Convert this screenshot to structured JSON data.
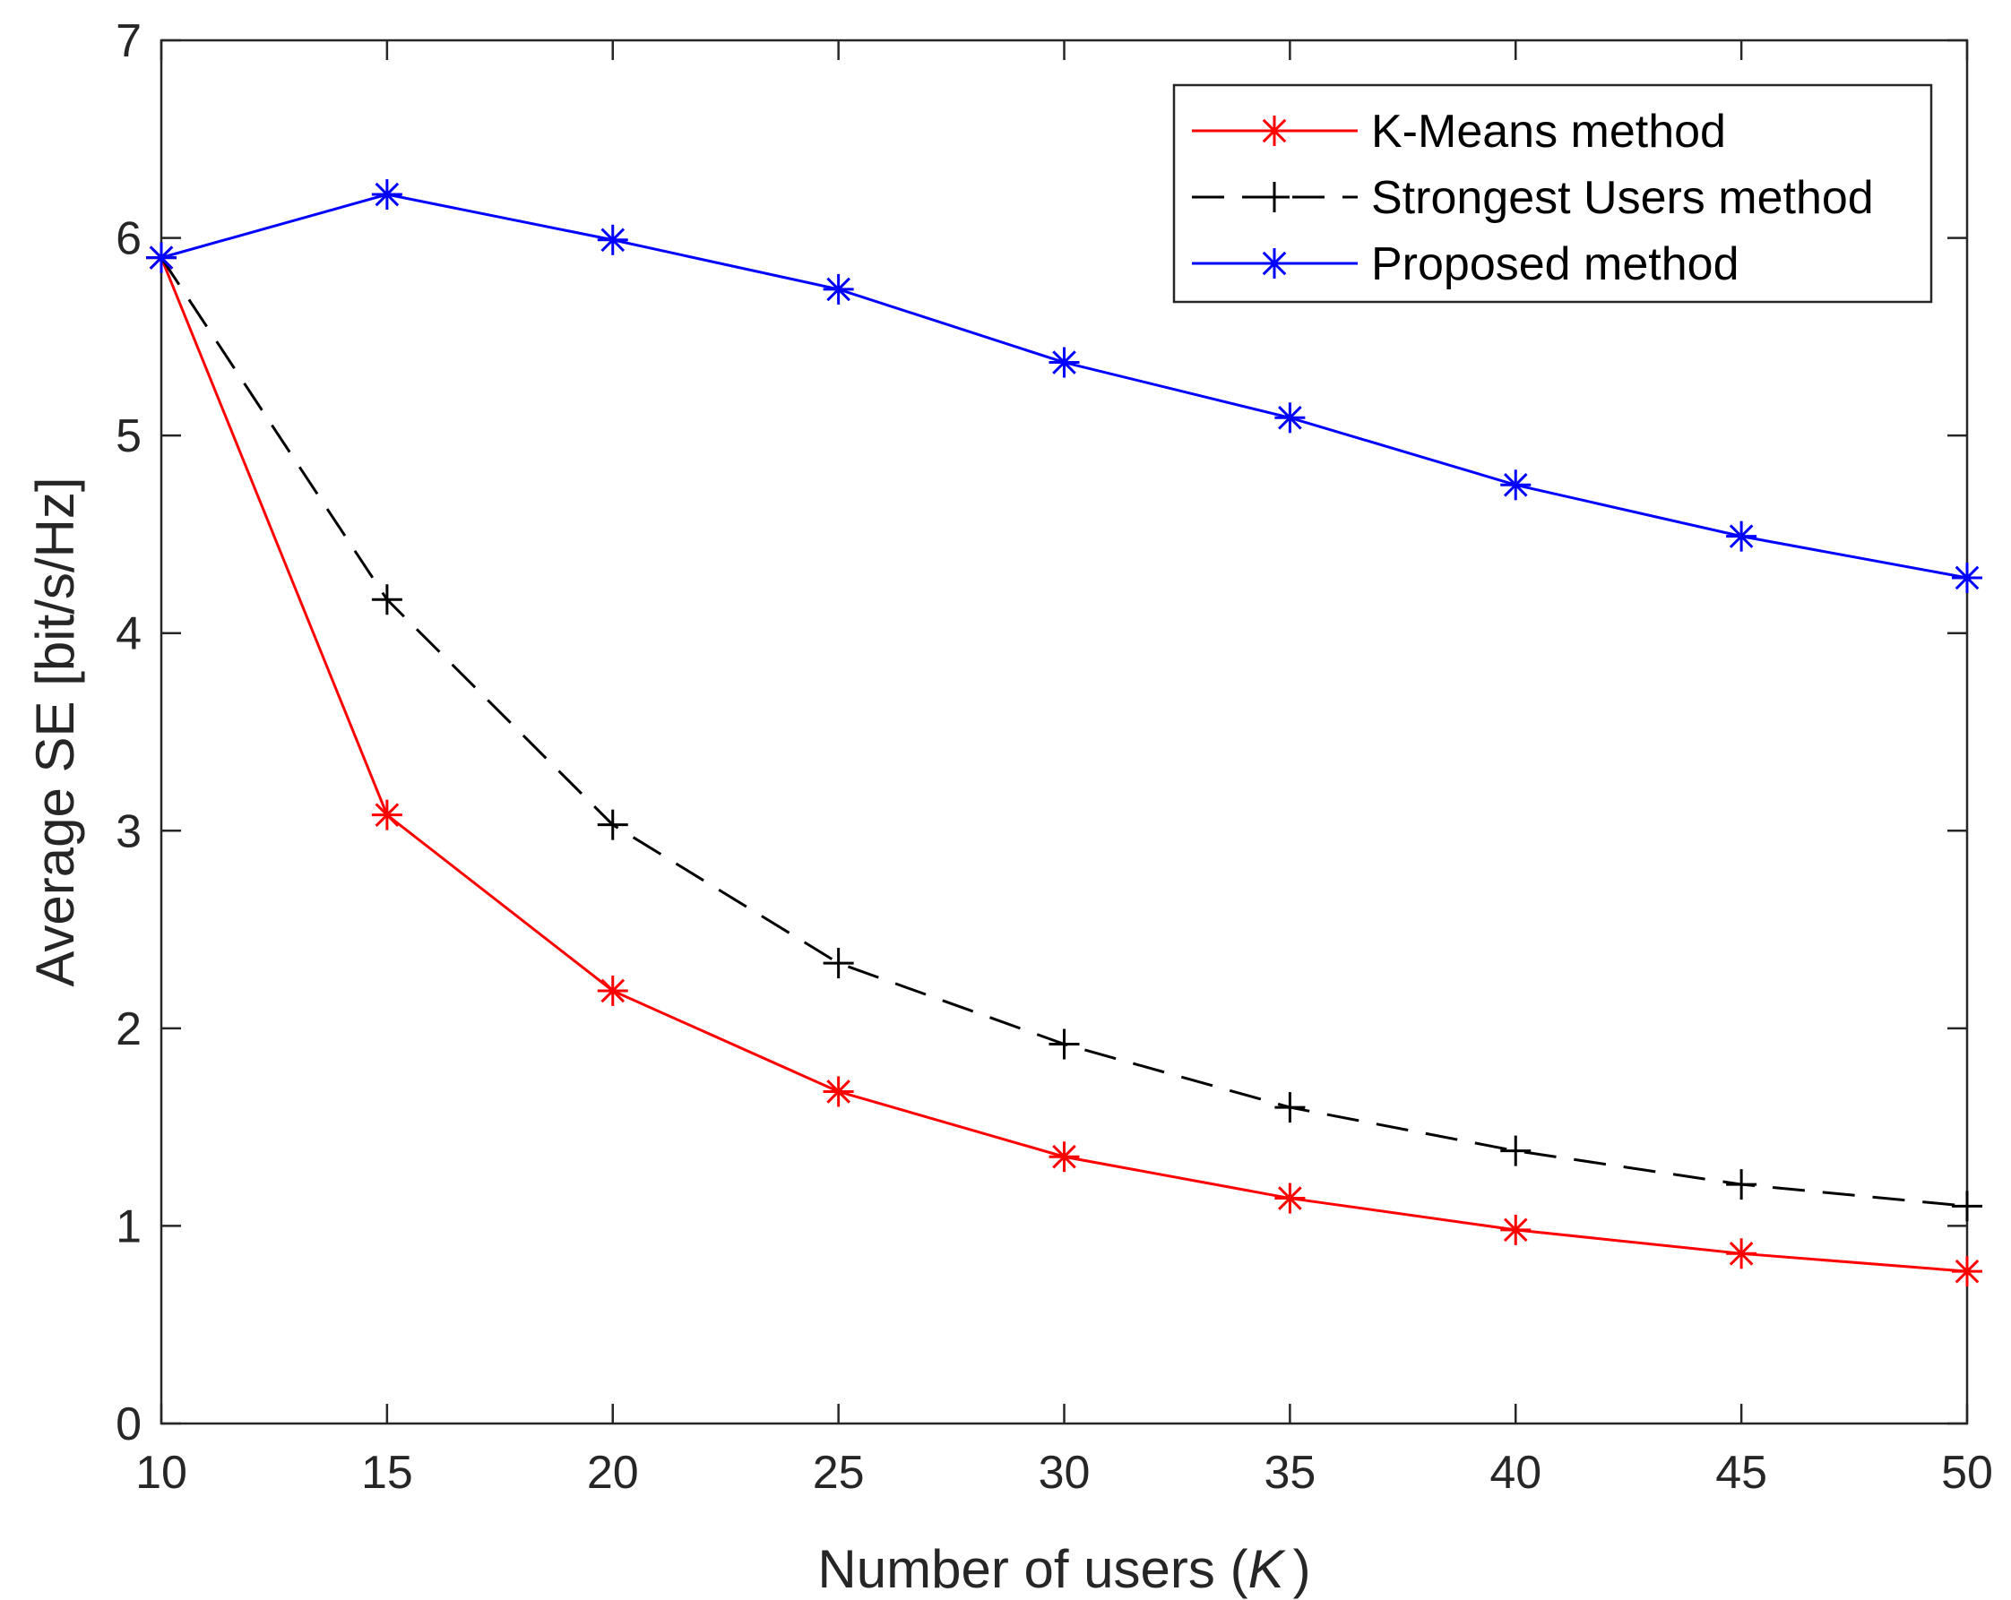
{
  "chart_data": {
    "type": "line",
    "title": "",
    "xlabel": "Number of users (",
    "xlabel_var": "K",
    "xlabel_close": ")",
    "ylabel": "Average SE [bit/s/Hz]",
    "xlim": [
      10,
      50
    ],
    "ylim": [
      0,
      7
    ],
    "xticks": [
      10,
      15,
      20,
      25,
      30,
      35,
      40,
      45,
      50
    ],
    "yticks": [
      0,
      1,
      2,
      3,
      4,
      5,
      6,
      7
    ],
    "grid": false,
    "legend_position": "top-right",
    "x": [
      10,
      15,
      20,
      25,
      30,
      35,
      40,
      45,
      50
    ],
    "series": [
      {
        "name": "K-Means method",
        "color": "#ff0000",
        "line_style": "solid",
        "marker": "asterisk",
        "values": [
          5.9,
          3.08,
          2.19,
          1.68,
          1.35,
          1.14,
          0.98,
          0.86,
          0.77
        ]
      },
      {
        "name": "Strongest Users method",
        "color": "#000000",
        "line_style": "dashed",
        "marker": "plus",
        "values": [
          5.9,
          4.17,
          3.03,
          2.33,
          1.92,
          1.6,
          1.38,
          1.21,
          1.1
        ]
      },
      {
        "name": "Proposed method",
        "color": "#0000ff",
        "line_style": "solid",
        "marker": "asterisk",
        "values": [
          5.9,
          6.22,
          5.99,
          5.74,
          5.37,
          5.09,
          4.75,
          4.49,
          4.28
        ]
      }
    ]
  }
}
